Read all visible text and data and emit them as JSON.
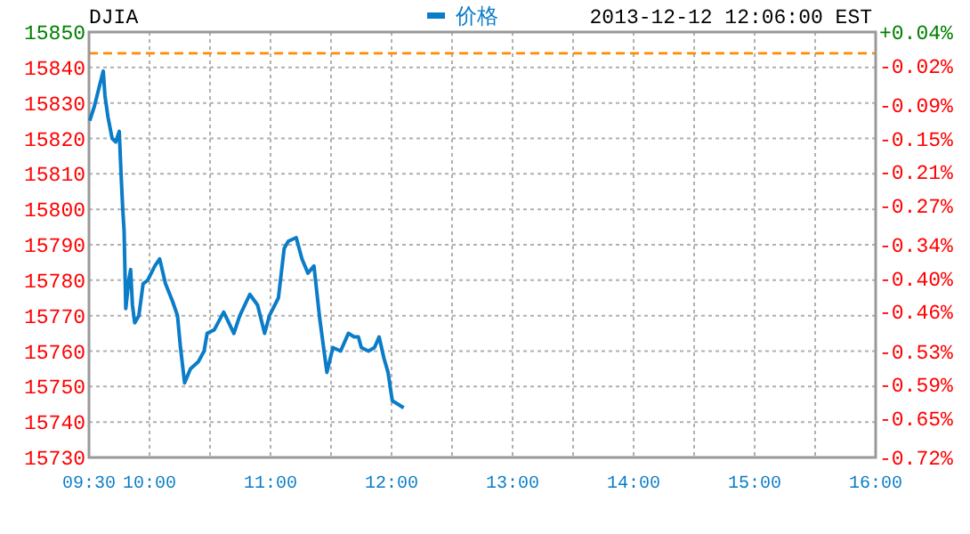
{
  "chart_data": {
    "type": "line",
    "title": "DJIA",
    "annotations": [
      "2013-12-12 12:06:00 EST"
    ],
    "legend": "top",
    "grid": true,
    "x": [
      9.506,
      9.544,
      9.603,
      9.618,
      9.632,
      9.657,
      9.691,
      9.721,
      9.75,
      9.765,
      9.779,
      9.79,
      9.804,
      9.829,
      9.844,
      9.859,
      9.878,
      9.912,
      9.947,
      9.985,
      10.044,
      10.084,
      10.132,
      10.191,
      10.231,
      10.256,
      10.29,
      10.338,
      10.403,
      10.451,
      10.476,
      10.535,
      10.613,
      10.697,
      10.746,
      10.829,
      10.893,
      10.951,
      10.991,
      11.065,
      11.113,
      11.147,
      11.212,
      11.26,
      11.309,
      11.359,
      11.407,
      11.466,
      11.515,
      11.579,
      11.643,
      11.691,
      11.726,
      11.75,
      11.809,
      11.859,
      11.897,
      11.937,
      11.971,
      12.006,
      12.054,
      12.1
    ],
    "series": [
      {
        "name": "价格",
        "color": "#0a7cc8",
        "values": [
          15825,
          15829,
          15837,
          15839,
          15832,
          15826,
          15820,
          15819,
          15822,
          15810,
          15800,
          15794,
          15772,
          15780,
          15783,
          15773,
          15768,
          15770,
          15779,
          15780,
          15784,
          15786,
          15779,
          15774,
          15770,
          15761,
          15751,
          15755,
          15757,
          15760,
          15765,
          15766,
          15771,
          15765,
          15770,
          15776,
          15773,
          15765,
          15770,
          15775,
          15789,
          15791,
          15792,
          15786,
          15782,
          15784,
          15769,
          15754,
          15761,
          15760,
          15765,
          15764,
          15764,
          15761,
          15760,
          15761,
          15764,
          15758,
          15754,
          15746,
          15745,
          15744
        ]
      }
    ],
    "xlim": [
      9.5,
      16
    ],
    "xticks": [
      {
        "value": 9.5,
        "label": "09:30"
      },
      {
        "value": 10,
        "label": "10:00"
      },
      {
        "value": 10.5,
        "label": null
      },
      {
        "value": 11,
        "label": "11:00"
      },
      {
        "value": 11.5,
        "label": null
      },
      {
        "value": 12,
        "label": "12:00"
      },
      {
        "value": 12.5,
        "label": null
      },
      {
        "value": 13,
        "label": "13:00"
      },
      {
        "value": 13.5,
        "label": null
      },
      {
        "value": 14,
        "label": "14:00"
      },
      {
        "value": 14.5,
        "label": null
      },
      {
        "value": 15,
        "label": "15:00"
      },
      {
        "value": 15.5,
        "label": null
      },
      {
        "value": 16,
        "label": "16:00"
      }
    ],
    "ylim": [
      15730,
      15850
    ],
    "yticks": [
      15730,
      15740,
      15750,
      15760,
      15770,
      15780,
      15790,
      15800,
      15810,
      15820,
      15830,
      15840,
      15850
    ],
    "y2lim": [
      -0.72,
      0.04
    ],
    "y2ticks": [
      {
        "value": -0.72,
        "label": "-0.72%"
      },
      {
        "value": -0.65,
        "label": "-0.65%"
      },
      {
        "value": -0.59,
        "label": "-0.59%"
      },
      {
        "value": -0.53,
        "label": "-0.53%"
      },
      {
        "value": -0.46,
        "label": "-0.46%"
      },
      {
        "value": -0.4,
        "label": "-0.40%"
      },
      {
        "value": -0.34,
        "label": "-0.34%"
      },
      {
        "value": -0.27,
        "label": "-0.27%"
      },
      {
        "value": -0.21,
        "label": "-0.21%"
      },
      {
        "value": -0.15,
        "label": "-0.15%"
      },
      {
        "value": -0.09,
        "label": "-0.09%"
      },
      {
        "value": -0.02,
        "label": "-0.02%"
      },
      {
        "value": 0.04,
        "label": "+0.04%"
      }
    ],
    "ref_lines": [
      {
        "axis": "y",
        "value": 15844,
        "color": "#ff8c00",
        "line_style": "dashed"
      }
    ]
  }
}
